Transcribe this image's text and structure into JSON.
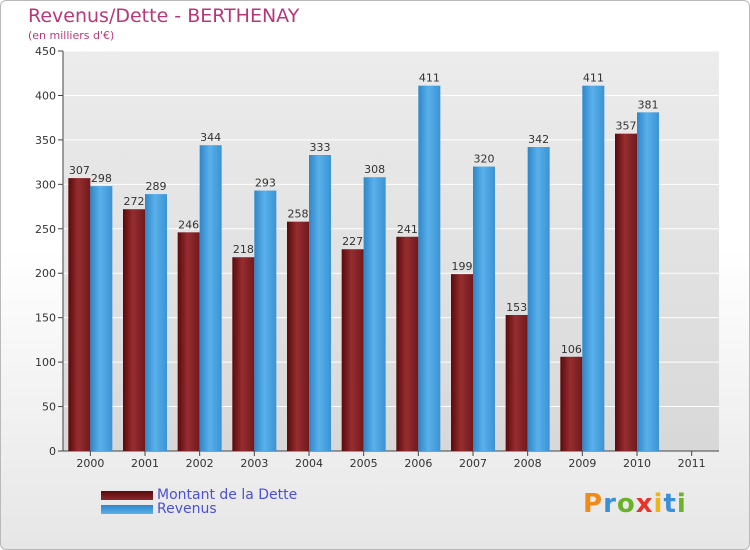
{
  "title": "Revenus/Dette - BERTHENAY",
  "subtitle": "(en milliers d'€)",
  "legend": {
    "debt_label": "Montant de la Dette",
    "revenue_label": "Revenus"
  },
  "logo_text": "Proxiti",
  "colors": {
    "debt": "#8b2a2d",
    "revenue": "#4aa3e2",
    "title": "#b8377b",
    "legend_text": "#4b50d6"
  },
  "chart_data": {
    "type": "bar",
    "categories": [
      "2000",
      "2001",
      "2002",
      "2003",
      "2004",
      "2005",
      "2006",
      "2007",
      "2008",
      "2009",
      "2010",
      "2011"
    ],
    "series": [
      {
        "name": "Montant de la Dette",
        "values": [
          307,
          272,
          246,
          218,
          258,
          227,
          241,
          199,
          153,
          106,
          357,
          null
        ]
      },
      {
        "name": "Revenus",
        "values": [
          298,
          289,
          344,
          293,
          333,
          308,
          411,
          320,
          342,
          411,
          381,
          null
        ]
      }
    ],
    "y_ticks": [
      0,
      50,
      100,
      150,
      200,
      250,
      300,
      350,
      400,
      450
    ],
    "ylim": [
      0,
      450
    ],
    "grid": true
  }
}
